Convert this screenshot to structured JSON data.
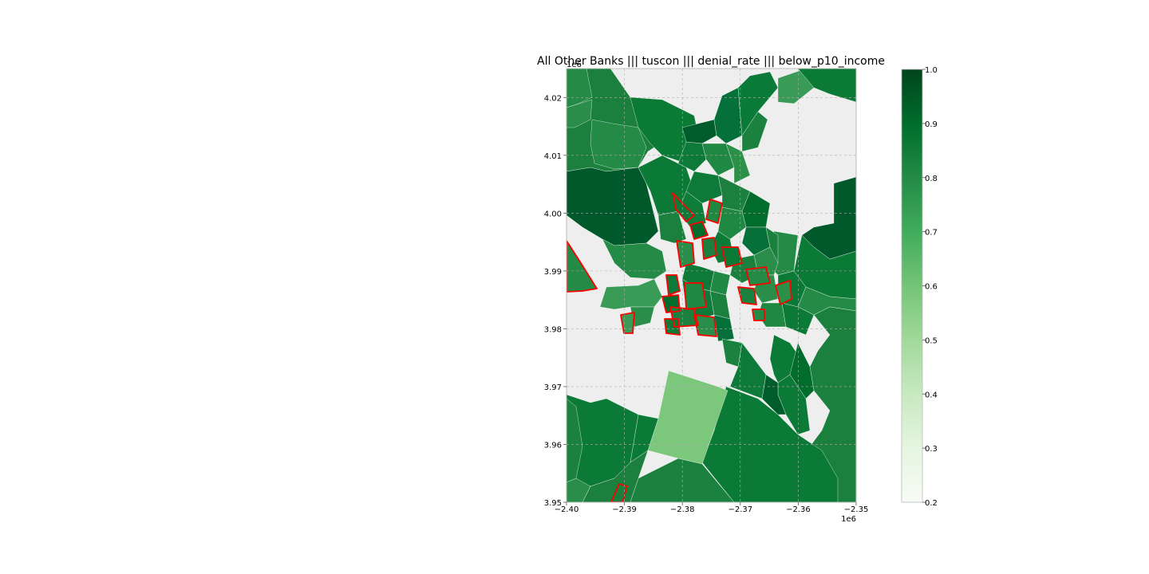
{
  "chart_data": {
    "type": "choropleth",
    "title": "All Other Banks ||| tuscon ||| denial_rate ||| below_p10_income",
    "x_offset_label": "1e6",
    "y_offset_label": "1e6",
    "xlim": [
      -2.4,
      -2.35
    ],
    "ylim": [
      3.95,
      4.025
    ],
    "x_ticks": [
      {
        "value": -2.4,
        "label": "−2.40"
      },
      {
        "value": -2.39,
        "label": "−2.39"
      },
      {
        "value": -2.38,
        "label": "−2.38"
      },
      {
        "value": -2.37,
        "label": "−2.37"
      },
      {
        "value": -2.36,
        "label": "−2.36"
      },
      {
        "value": -2.35,
        "label": "−2.35"
      }
    ],
    "y_ticks": [
      {
        "value": 3.95,
        "label": "3.95"
      },
      {
        "value": 3.96,
        "label": "3.96"
      },
      {
        "value": 3.97,
        "label": "3.97"
      },
      {
        "value": 3.98,
        "label": "3.98"
      },
      {
        "value": 3.99,
        "label": "3.99"
      },
      {
        "value": 4.0,
        "label": "4.00"
      },
      {
        "value": 4.01,
        "label": "4.01"
      },
      {
        "value": 4.02,
        "label": "4.02"
      }
    ],
    "grid": true,
    "background_color": "#eeeeee",
    "highlight_color": "#ff0000",
    "colormap": "Greens",
    "colorbar": {
      "range": [
        0.2,
        1.0
      ],
      "ticks": [
        {
          "value": 1.0,
          "label": "1.0"
        },
        {
          "value": 0.9,
          "label": "0.9"
        },
        {
          "value": 0.8,
          "label": "0.8"
        },
        {
          "value": 0.7,
          "label": "0.7"
        },
        {
          "value": 0.6,
          "label": "0.6"
        },
        {
          "value": 0.5,
          "label": "0.5"
        },
        {
          "value": 0.4,
          "label": "0.4"
        },
        {
          "value": 0.3,
          "label": "0.3"
        },
        {
          "value": 0.2,
          "label": "0.2"
        }
      ],
      "stops": [
        "#f7fcf5",
        "#e5f5e0",
        "#c7e9c0",
        "#a1d99b",
        "#74c476",
        "#41ab5d",
        "#238b45",
        "#006d2c",
        "#00441b"
      ]
    }
  }
}
